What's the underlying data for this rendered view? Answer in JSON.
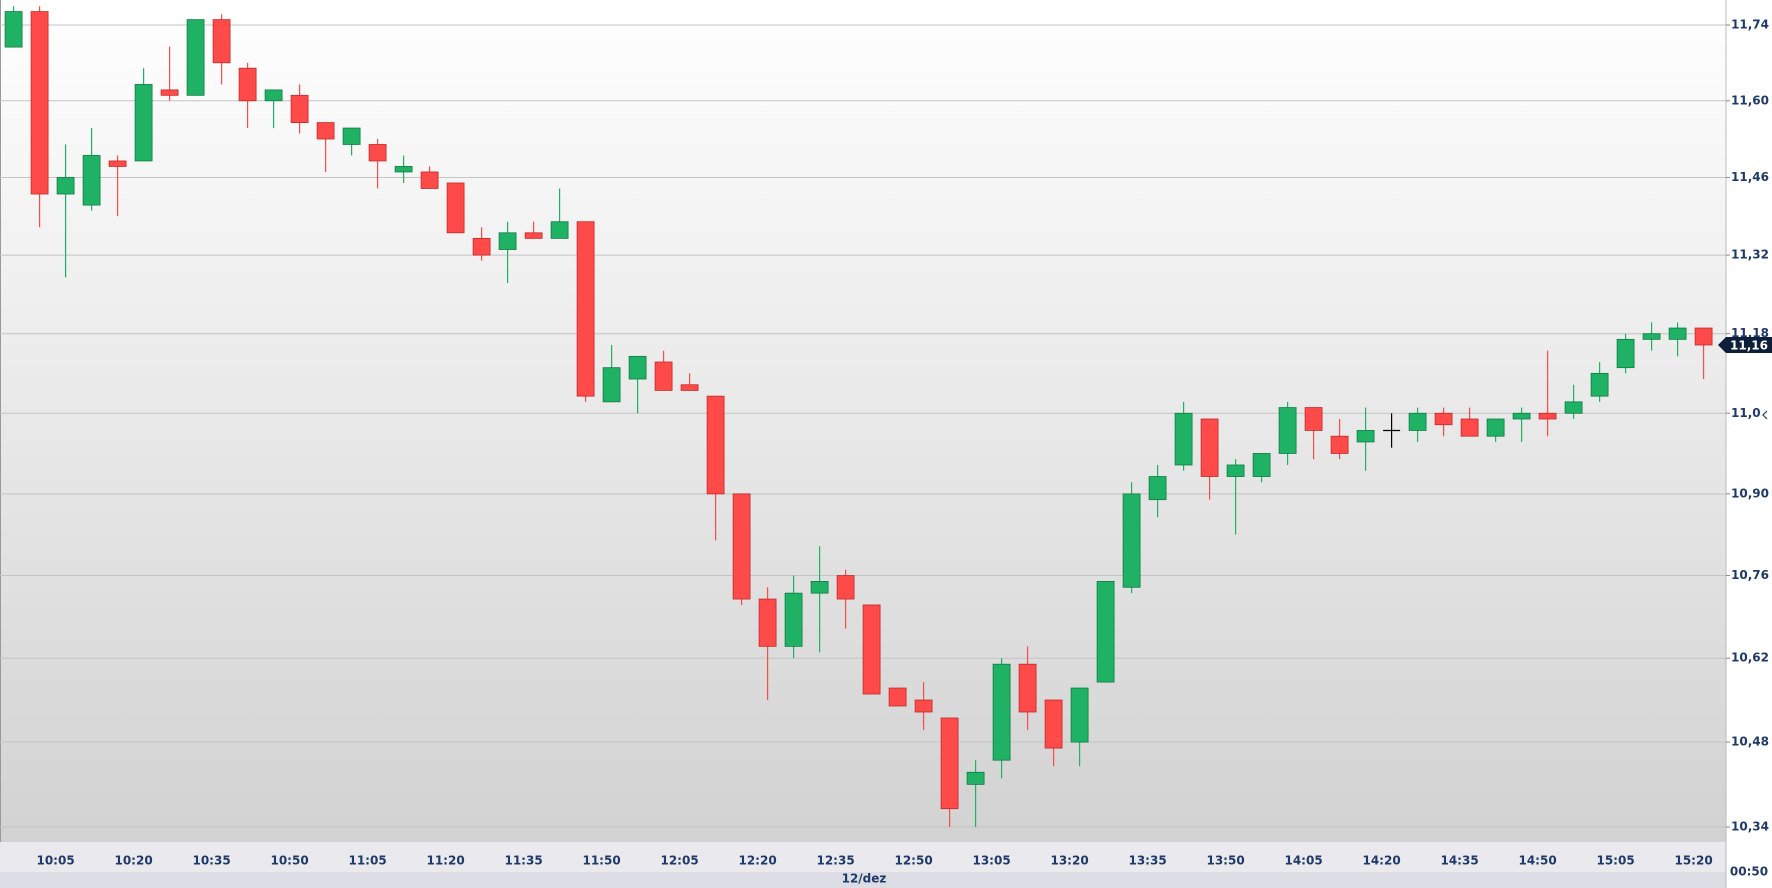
{
  "chart_data": {
    "type": "candlestick",
    "log_scale": true,
    "grid": true,
    "up_color": "#1fb265",
    "down_color": "#ff4a4a",
    "open": [
      11.699,
      11.765,
      11.43,
      11.41,
      11.49,
      11.49,
      11.62,
      11.61,
      11.75,
      11.66,
      11.6,
      11.61,
      11.56,
      11.52,
      11.52,
      11.47,
      11.47,
      11.45,
      11.35,
      11.33,
      11.36,
      11.35,
      11.38,
      11.06,
      11.1,
      11.13,
      11.09,
      11.07,
      10.9,
      10.72,
      10.64,
      10.73,
      10.76,
      10.71,
      10.57,
      10.55,
      10.52,
      10.41,
      10.45,
      10.61,
      10.55,
      10.48,
      10.58,
      10.74,
      10.89,
      10.95,
      11.03,
      10.93,
      10.93,
      10.97,
      11.05,
      11.0,
      10.99,
      11.01,
      11.01,
      11.04,
      11.03,
      11.0,
      11.03,
      11.04,
      11.04,
      11.07,
      11.12,
      11.17,
      11.17,
      11.19
    ],
    "high": [
      11.775,
      11.775,
      11.52,
      11.55,
      11.5,
      11.66,
      11.7,
      11.75,
      11.76,
      11.67,
      11.62,
      11.63,
      11.56,
      11.55,
      11.53,
      11.5,
      11.48,
      11.45,
      11.37,
      11.38,
      11.38,
      11.44,
      11.38,
      11.16,
      11.14,
      11.15,
      11.11,
      11.07,
      10.9,
      10.74,
      10.76,
      10.81,
      10.77,
      10.71,
      10.57,
      10.58,
      10.52,
      10.45,
      10.62,
      10.64,
      10.55,
      10.57,
      10.75,
      10.92,
      10.95,
      11.06,
      11.03,
      10.96,
      10.97,
      11.06,
      11.05,
      11.03,
      11.05,
      11.04,
      11.05,
      11.05,
      11.05,
      11.03,
      11.05,
      11.15,
      11.09,
      11.13,
      11.18,
      11.2,
      11.2,
      11.19
    ],
    "low": [
      11.7,
      11.37,
      11.28,
      11.4,
      11.39,
      11.49,
      11.6,
      11.61,
      11.63,
      11.55,
      11.55,
      11.54,
      11.47,
      11.5,
      11.44,
      11.45,
      11.44,
      11.36,
      11.31,
      11.27,
      11.35,
      11.35,
      11.06,
      11.06,
      11.04,
      11.08,
      11.08,
      10.82,
      10.71,
      10.55,
      10.62,
      10.63,
      10.67,
      10.56,
      10.54,
      10.5,
      10.34,
      10.34,
      10.42,
      10.5,
      10.44,
      10.44,
      10.58,
      10.73,
      10.86,
      10.94,
      10.89,
      10.83,
      10.92,
      10.95,
      10.96,
      10.96,
      10.94,
      10.98,
      10.99,
      11.0,
      11.0,
      10.99,
      10.99,
      11.0,
      11.03,
      11.06,
      11.11,
      11.15,
      11.14,
      11.1
    ],
    "close": [
      11.765,
      11.43,
      11.46,
      11.5,
      11.48,
      11.63,
      11.61,
      11.75,
      11.67,
      11.6,
      11.62,
      11.56,
      11.53,
      11.55,
      11.49,
      11.48,
      11.44,
      11.36,
      11.32,
      11.36,
      11.35,
      11.38,
      11.07,
      11.12,
      11.14,
      11.08,
      11.08,
      10.9,
      10.72,
      10.64,
      10.73,
      10.75,
      10.72,
      10.56,
      10.54,
      10.53,
      10.37,
      10.43,
      10.61,
      10.53,
      10.47,
      10.57,
      10.75,
      10.9,
      10.93,
      11.04,
      10.93,
      10.95,
      10.97,
      11.05,
      11.01,
      10.97,
      11.01,
      11.01,
      11.04,
      11.02,
      11.0,
      11.03,
      11.04,
      11.03,
      11.06,
      11.11,
      11.17,
      11.18,
      11.19,
      11.16
    ],
    "x_labels": [
      "10:05",
      "10:20",
      "10:35",
      "10:50",
      "11:05",
      "11:20",
      "11:35",
      "11:50",
      "12:05",
      "12:20",
      "12:35",
      "12:50",
      "13:05",
      "13:20",
      "13:35",
      "13:50",
      "14:05",
      "14:20",
      "14:35",
      "14:50",
      "15:05",
      "15:20"
    ],
    "date_label": "12/dez",
    "ylim": [
      10.34,
      11.74
    ],
    "yticks": [
      {
        "value": 11.74,
        "label": "11,74"
      },
      {
        "value": 11.6,
        "label": "11,60"
      },
      {
        "value": 11.46,
        "label": "11,46"
      },
      {
        "value": 11.32,
        "label": "11,32"
      },
      {
        "value": 11.18,
        "label": "11,18"
      },
      {
        "value": 11.04,
        "label": "11,0"
      },
      {
        "value": 10.9,
        "label": "10,90"
      },
      {
        "value": 10.76,
        "label": "10,76"
      },
      {
        "value": 10.62,
        "label": "10,62"
      },
      {
        "value": 10.48,
        "label": "10,48"
      },
      {
        "value": 10.34,
        "label": "10,34"
      }
    ],
    "last_price": {
      "value": 11.16,
      "label": "11,16"
    },
    "countdown": "00:50"
  }
}
